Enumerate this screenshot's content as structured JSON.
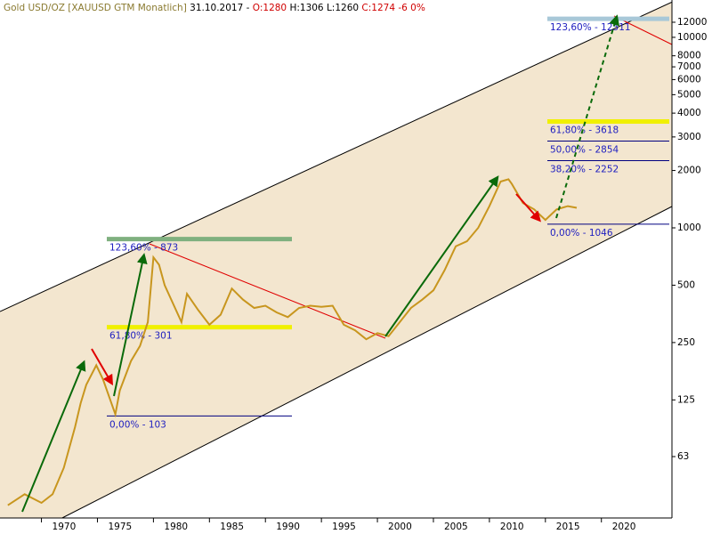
{
  "header": {
    "instrument": "Gold USD/OZ [XAUUSD GTM  Monatlich]",
    "date": "31.10.2017",
    "open": "O:1280",
    "high": "H:1306",
    "low": "L:1260",
    "close": "C:1274",
    "change": "-6 0%"
  },
  "chart_data": {
    "type": "line",
    "log_scale": true,
    "color": "#c8961e",
    "x": [
      1967,
      1968.5,
      1970,
      1971,
      1972,
      1973,
      1973.5,
      1974,
      1974.9,
      1975.5,
      1976.6,
      1977,
      1978,
      1978.8,
      1979.5,
      1980,
      1980.5,
      1981,
      1982.5,
      1983,
      1984,
      1985,
      1986,
      1987,
      1988,
      1989,
      1990,
      1991,
      1992,
      1993,
      1994,
      1995,
      1996,
      1997,
      1998,
      1999,
      2000,
      2001,
      2002,
      2003,
      2004,
      2005,
      2006,
      2007,
      2008,
      2009,
      2010,
      2011,
      2011.7,
      2012,
      2013,
      2014,
      2015,
      2016,
      2017,
      2017.8
    ],
    "values": [
      35,
      40,
      36,
      40,
      55,
      90,
      120,
      150,
      190,
      160,
      105,
      140,
      200,
      240,
      320,
      700,
      640,
      500,
      320,
      450,
      370,
      310,
      350,
      480,
      420,
      380,
      390,
      360,
      340,
      380,
      390,
      385,
      390,
      310,
      290,
      260,
      280,
      270,
      320,
      380,
      420,
      470,
      600,
      800,
      850,
      1000,
      1300,
      1750,
      1800,
      1700,
      1350,
      1250,
      1100,
      1250,
      1300,
      1274
    ],
    "xlim": [
      1966.3,
      2026.3
    ],
    "ylim": [
      30,
      15700
    ],
    "xticks": [
      1970,
      1975,
      1980,
      1985,
      1990,
      1995,
      2000,
      2005,
      2010,
      2015,
      2020
    ],
    "yticks": [
      63,
      125,
      250,
      500,
      1000,
      2000,
      3000,
      4000,
      5000,
      6000,
      7000,
      8000,
      10000,
      12000
    ],
    "retracements": [
      {
        "levels": [
          {
            "label": "123,60% - 873",
            "value": 873,
            "color": "#7fb07f"
          },
          {
            "label": "61,80% - 301",
            "value": 301,
            "color": "#f0f000"
          },
          {
            "label": "0,00% - 103",
            "value": 103,
            "color": "#000080"
          }
        ]
      },
      {
        "levels": [
          {
            "label": "123,60% - 12511",
            "value": 12511,
            "color": "#a8c8d8"
          },
          {
            "label": "61,80% - 3618",
            "value": 3618,
            "color": "#f0f000"
          },
          {
            "label": "50,00% - 2854",
            "value": 2854,
            "color": "#000080"
          },
          {
            "label": "38,20% - 2252",
            "value": 2252,
            "color": "#000080"
          },
          {
            "label": "0,00% - 1046",
            "value": 1046,
            "color": "#000080"
          }
        ]
      }
    ]
  }
}
